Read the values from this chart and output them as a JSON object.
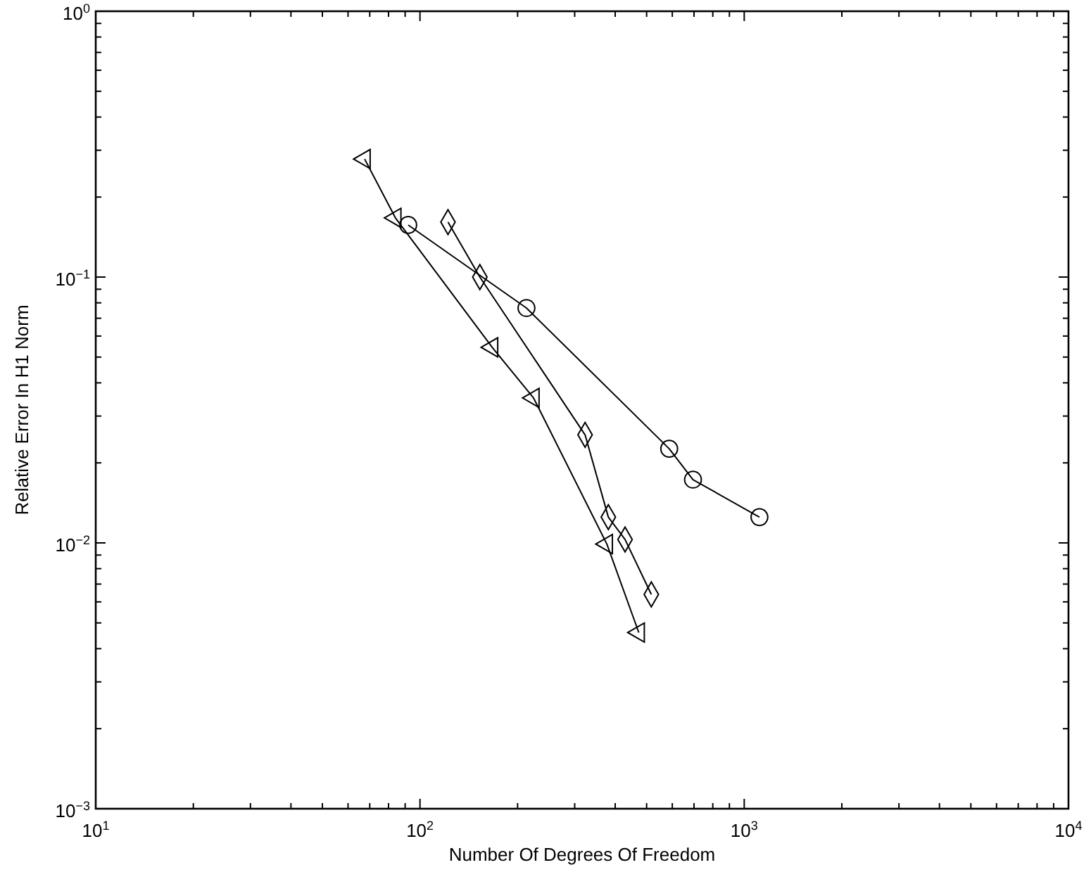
{
  "chart_data": {
    "type": "line",
    "xlabel": "Number Of Degrees Of Freedom",
    "ylabel": "Relative Error In H1 Norm",
    "log": "xy",
    "grid": false,
    "xlim": [
      10,
      10000
    ],
    "ylim": [
      0.001,
      1
    ],
    "xticks": [
      {
        "value": 10,
        "label": "10$^{1}$"
      },
      {
        "value": 20,
        "label": null
      },
      {
        "value": 30,
        "label": null
      },
      {
        "value": 40,
        "label": null
      },
      {
        "value": 50,
        "label": null
      },
      {
        "value": 60,
        "label": null
      },
      {
        "value": 70,
        "label": null
      },
      {
        "value": 80,
        "label": null
      },
      {
        "value": 90,
        "label": null
      },
      {
        "value": 100,
        "label": "10$^{2}$"
      },
      {
        "value": 200,
        "label": null
      },
      {
        "value": 300,
        "label": null
      },
      {
        "value": 400,
        "label": null
      },
      {
        "value": 500,
        "label": null
      },
      {
        "value": 600,
        "label": null
      },
      {
        "value": 700,
        "label": null
      },
      {
        "value": 800,
        "label": null
      },
      {
        "value": 900,
        "label": null
      },
      {
        "value": 1000,
        "label": "10$^{3}$"
      },
      {
        "value": 2000,
        "label": null
      },
      {
        "value": 3000,
        "label": null
      },
      {
        "value": 4000,
        "label": null
      },
      {
        "value": 5000,
        "label": null
      },
      {
        "value": 6000,
        "label": null
      },
      {
        "value": 7000,
        "label": null
      },
      {
        "value": 8000,
        "label": null
      },
      {
        "value": 9000,
        "label": null
      },
      {
        "value": 10000,
        "label": "10$^{4}$"
      }
    ],
    "yticks": [
      {
        "value": 0.001,
        "label": "10$^{−3}$"
      },
      {
        "value": 0.002,
        "label": null
      },
      {
        "value": 0.003,
        "label": null
      },
      {
        "value": 0.004,
        "label": null
      },
      {
        "value": 0.005,
        "label": null
      },
      {
        "value": 0.006,
        "label": null
      },
      {
        "value": 0.007,
        "label": null
      },
      {
        "value": 0.008,
        "label": null
      },
      {
        "value": 0.009,
        "label": null
      },
      {
        "value": 0.01,
        "label": "10$^{−2}$"
      },
      {
        "value": 0.02,
        "label": null
      },
      {
        "value": 0.03,
        "label": null
      },
      {
        "value": 0.04,
        "label": null
      },
      {
        "value": 0.05,
        "label": null
      },
      {
        "value": 0.06,
        "label": null
      },
      {
        "value": 0.07,
        "label": null
      },
      {
        "value": 0.08,
        "label": null
      },
      {
        "value": 0.09,
        "label": null
      },
      {
        "value": 0.1,
        "label": "10$^{−1}$"
      },
      {
        "value": 0.2,
        "label": null
      },
      {
        "value": 0.3,
        "label": null
      },
      {
        "value": 0.4,
        "label": null
      },
      {
        "value": 0.5,
        "label": null
      },
      {
        "value": 0.6,
        "label": null
      },
      {
        "value": 0.7,
        "label": null
      },
      {
        "value": 0.8,
        "label": null
      },
      {
        "value": 0.9,
        "label": null
      },
      {
        "value": 1,
        "label": "10$^{0}$"
      }
    ],
    "series": [
      {
        "color": "#000000",
        "marker": "circle",
        "x": [
          92,
          213,
          587,
          695,
          1114
        ],
        "values": [
          0.157,
          0.0765,
          0.0226,
          0.0173,
          0.0125
        ]
      },
      {
        "color": "#000000",
        "marker": "triangle",
        "x": [
          67.5,
          84,
          167,
          224,
          377,
          473
        ],
        "values": [
          0.278,
          0.167,
          0.0544,
          0.0351,
          0.0099,
          0.0046
        ]
      },
      {
        "color": "#000000",
        "marker": "diamond",
        "x": [
          122,
          153,
          323,
          381,
          429,
          517
        ],
        "values": [
          0.161,
          0.1,
          0.0255,
          0.0125,
          0.0103,
          0.0064
        ]
      }
    ]
  }
}
